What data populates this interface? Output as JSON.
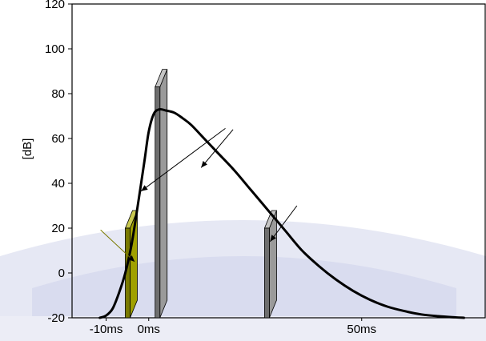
{
  "chart_data": {
    "type": "line",
    "title": "",
    "xlabel": "",
    "ylabel": "[dB]",
    "ylim": [
      -20,
      120
    ],
    "xlim": [
      -18,
      79
    ],
    "grid": false,
    "legend": "none",
    "x_ticks": [
      {
        "value": -10,
        "label": "-10ms"
      },
      {
        "value": 0,
        "label": "0ms"
      },
      {
        "value": 50,
        "label": "50ms"
      }
    ],
    "y_ticks": [
      {
        "value": 120,
        "label": "120"
      },
      {
        "value": 100,
        "label": "100"
      },
      {
        "value": 80,
        "label": "80"
      },
      {
        "value": 60,
        "label": "60"
      },
      {
        "value": 40,
        "label": "40"
      },
      {
        "value": 20,
        "label": "20"
      },
      {
        "value": 0,
        "label": "0"
      },
      {
        "value": -20,
        "label": "-20"
      }
    ],
    "series": [
      {
        "color": "#000000",
        "x": [
          -11.5,
          -10,
          -8.5,
          -7,
          -5.5,
          -4,
          -2.5,
          -1,
          0,
          1.2,
          2.5,
          4,
          6,
          8,
          10,
          13,
          16,
          20,
          24,
          28,
          32,
          36,
          40,
          44,
          48,
          52,
          56,
          60,
          64,
          68,
          72,
          74
        ],
        "y": [
          -20,
          -19,
          -16,
          -9,
          0,
          13,
          31,
          50,
          63,
          71,
          73,
          72.5,
          71.5,
          69,
          66,
          60,
          54,
          46,
          37,
          28,
          19,
          10,
          3,
          -3,
          -8,
          -12,
          -15,
          -17,
          -18.5,
          -19.3,
          -19.8,
          -20
        ]
      }
    ],
    "bars": [
      {
        "name": "olive",
        "x": -5.5,
        "y_bottom": -20,
        "y_top": 20,
        "front_color": "#a0a000",
        "side_color": "#7a7a00",
        "top_color": "#c8c850"
      },
      {
        "name": "tall-gray",
        "x": 1.5,
        "y_bottom": -20,
        "y_top": 83,
        "front_color": "#9a9a9a",
        "side_color": "#6e6e6e",
        "top_color": "#c4c4c4"
      },
      {
        "name": "small-gray",
        "x": 27.2,
        "y_bottom": -20,
        "y_top": 20,
        "front_color": "#9a9a9a",
        "side_color": "#6e6e6e",
        "top_color": "#c4c4c4"
      }
    ],
    "arrows": [
      {
        "color": "#000000",
        "from": [
          18,
          64.5
        ],
        "to": [
          -1.8,
          36.5
        ]
      },
      {
        "color": "#000000",
        "from": [
          19.8,
          64
        ],
        "to": [
          12.3,
          47
        ]
      },
      {
        "color": "#000000",
        "from": [
          34.8,
          30
        ],
        "to": [
          28.5,
          14
        ]
      },
      {
        "color": "#7a7a00",
        "from": [
          -11.3,
          19.2
        ],
        "to": [
          -3.3,
          5
        ]
      }
    ],
    "colors": {
      "axis": "#000000",
      "background_motif": "#d6d9ee",
      "curve": "#000000"
    }
  }
}
